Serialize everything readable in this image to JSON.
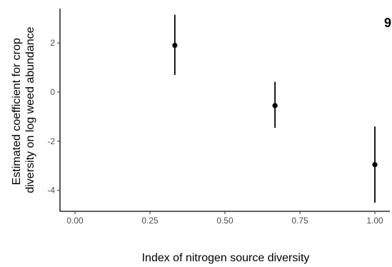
{
  "chart_data": {
    "type": "scatter",
    "panel_tag": "9",
    "xlabel": "Index of nitrogen source diversity",
    "ylabel_lines": [
      "Estimated coefficient for crop",
      "diversity on log weed abundance"
    ],
    "xlim": [
      -0.05,
      1.05
    ],
    "ylim": [
      -4.85,
      3.4
    ],
    "x_ticks": [
      0.0,
      0.25,
      0.5,
      0.75,
      1.0
    ],
    "x_tick_labels": [
      "0.00",
      "0.25",
      "0.50",
      "0.75",
      "1.00"
    ],
    "y_ticks": [
      -4,
      -2,
      0,
      2
    ],
    "y_tick_labels": [
      "-4",
      "-2",
      "0",
      "2"
    ],
    "grid": false,
    "points": [
      {
        "x": 0.333,
        "y": 1.9,
        "lower": 0.7,
        "upper": 3.15
      },
      {
        "x": 0.667,
        "y": -0.55,
        "lower": -1.45,
        "upper": 0.42
      },
      {
        "x": 1.0,
        "y": -2.95,
        "lower": -4.5,
        "upper": -1.4
      }
    ],
    "colors": {
      "marks": "#000000",
      "axis": "#000000",
      "tick_text": "#4d4d4d"
    }
  }
}
